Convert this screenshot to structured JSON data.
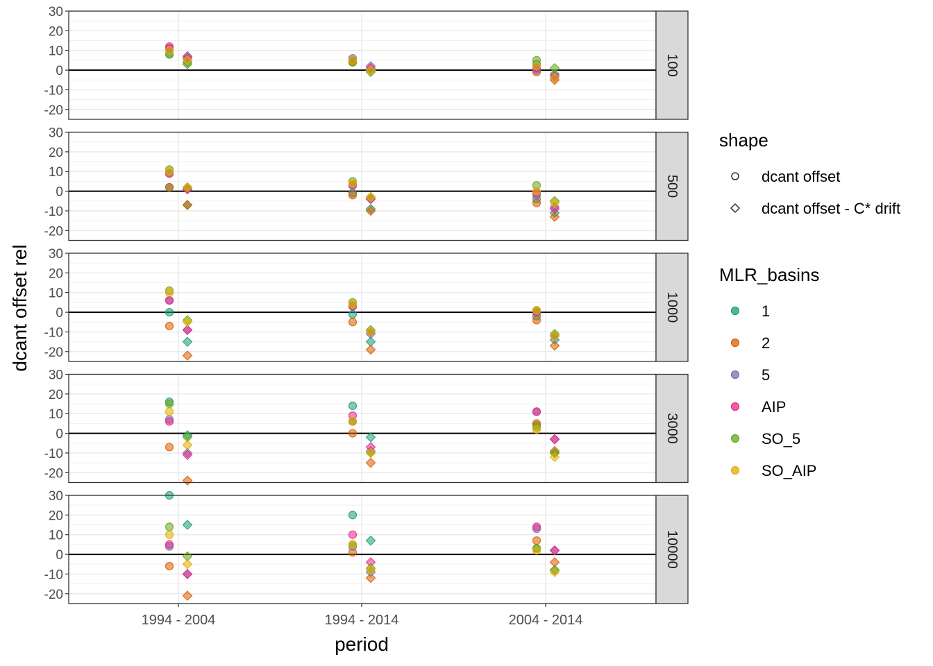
{
  "chart_data": {
    "type": "scatter",
    "facet_label_name": "",
    "facets": [
      "100",
      "500",
      "1000",
      "3000",
      "10000"
    ],
    "xlabel": "period",
    "ylabel": "dcant offset rel",
    "x_categories": [
      "1994 - 2004",
      "1994 - 2014",
      "2004 - 2014"
    ],
    "ylim": [
      -25,
      30
    ],
    "y_ticks": [
      30,
      20,
      10,
      0,
      -10,
      -20
    ],
    "y_tick_labels": [
      "30",
      "20",
      "10",
      "0",
      "-10",
      "-20"
    ],
    "hline": 0,
    "grid": true,
    "legend_position": "right",
    "legend": {
      "shape_title": "shape",
      "shapes": [
        {
          "key": "circle",
          "label": "dcant offset"
        },
        {
          "key": "diamond",
          "label": "dcant offset - C* drift"
        }
      ],
      "color_title": "MLR_basins",
      "colors": [
        {
          "key": "1",
          "label": "1",
          "color": "#1B9E77"
        },
        {
          "key": "2",
          "label": "2",
          "color": "#D95F02"
        },
        {
          "key": "5",
          "label": "5",
          "color": "#7570B3"
        },
        {
          "key": "AIP",
          "label": "AIP",
          "color": "#E7298A"
        },
        {
          "key": "SO_5",
          "label": "SO_5",
          "color": "#66A61E"
        },
        {
          "key": "SO_AIP",
          "label": "SO_AIP",
          "color": "#E6AB02"
        }
      ]
    },
    "series": [
      {
        "facet": "100",
        "shape": "circle",
        "period": "1994 - 2004",
        "values": {
          "1": 8,
          "2": 11,
          "5": 11,
          "AIP": 12,
          "SO_5": 8,
          "SO_AIP": 10
        }
      },
      {
        "facet": "100",
        "shape": "diamond",
        "period": "1994 - 2004",
        "values": {
          "1": 4,
          "2": 7,
          "5": 7,
          "AIP": 6,
          "SO_5": 3,
          "SO_AIP": 5
        }
      },
      {
        "facet": "100",
        "shape": "circle",
        "period": "1994 - 2014",
        "values": {
          "1": 4,
          "2": 4,
          "5": 6,
          "AIP": 5,
          "SO_5": 4,
          "SO_AIP": 5
        }
      },
      {
        "facet": "100",
        "shape": "diamond",
        "period": "1994 - 2014",
        "values": {
          "1": 0,
          "2": 0,
          "5": 2,
          "AIP": 1,
          "SO_5": -1,
          "SO_AIP": 0
        }
      },
      {
        "facet": "100",
        "shape": "circle",
        "period": "2004 - 2014",
        "values": {
          "1": 3,
          "2": -1,
          "5": 0,
          "AIP": 1,
          "SO_5": 5,
          "SO_AIP": 2
        }
      },
      {
        "facet": "100",
        "shape": "diamond",
        "period": "2004 - 2014",
        "values": {
          "1": -2,
          "2": -5,
          "5": -4,
          "AIP": -3,
          "SO_5": 1,
          "SO_AIP": -4
        }
      },
      {
        "facet": "500",
        "shape": "circle",
        "period": "1994 - 2004",
        "values": {
          "1": 2,
          "2": 2,
          "5": 9,
          "AIP": 9,
          "SO_5": 11,
          "SO_AIP": 10
        }
      },
      {
        "facet": "500",
        "shape": "diamond",
        "period": "1994 - 2004",
        "values": {
          "1": -7,
          "2": -7,
          "5": 1,
          "AIP": 1,
          "SO_5": 2,
          "SO_AIP": 2
        }
      },
      {
        "facet": "500",
        "shape": "circle",
        "period": "1994 - 2014",
        "values": {
          "1": -1,
          "2": -2,
          "5": 3,
          "AIP": 3,
          "SO_5": 5,
          "SO_AIP": 4
        }
      },
      {
        "facet": "500",
        "shape": "diamond",
        "period": "1994 - 2014",
        "values": {
          "1": -9,
          "2": -10,
          "5": -4,
          "AIP": -4,
          "SO_5": -3,
          "SO_AIP": -3
        }
      },
      {
        "facet": "500",
        "shape": "circle",
        "period": "2004 - 2014",
        "values": {
          "1": -4,
          "2": -6,
          "5": -2,
          "AIP": -1,
          "SO_5": 3,
          "SO_AIP": 0
        }
      },
      {
        "facet": "500",
        "shape": "diamond",
        "period": "2004 - 2014",
        "values": {
          "1": -11,
          "2": -13,
          "5": -8,
          "AIP": -9,
          "SO_5": -5,
          "SO_AIP": -6
        }
      },
      {
        "facet": "1000",
        "shape": "circle",
        "period": "1994 - 2004",
        "values": {
          "1": 0,
          "2": -7,
          "5": 6,
          "AIP": 6,
          "SO_5": 11,
          "SO_AIP": 10
        }
      },
      {
        "facet": "1000",
        "shape": "diamond",
        "period": "1994 - 2004",
        "values": {
          "1": -15,
          "2": -22,
          "5": -9,
          "AIP": -9,
          "SO_5": -4,
          "SO_AIP": -5
        }
      },
      {
        "facet": "1000",
        "shape": "circle",
        "period": "1994 - 2014",
        "values": {
          "1": -1,
          "2": -5,
          "5": 3,
          "AIP": 3,
          "SO_5": 5,
          "SO_AIP": 4
        }
      },
      {
        "facet": "1000",
        "shape": "diamond",
        "period": "1994 - 2014",
        "values": {
          "1": -15,
          "2": -19,
          "5": -11,
          "AIP": -10,
          "SO_5": -9,
          "SO_AIP": -10
        }
      },
      {
        "facet": "1000",
        "shape": "circle",
        "period": "2004 - 2014",
        "values": {
          "1": -2,
          "2": -4,
          "5": 0,
          "AIP": 0,
          "SO_5": 1,
          "SO_AIP": 1
        }
      },
      {
        "facet": "1000",
        "shape": "diamond",
        "period": "2004 - 2014",
        "values": {
          "1": -14,
          "2": -17,
          "5": -12,
          "AIP": -12,
          "SO_5": -11,
          "SO_AIP": -12
        }
      },
      {
        "facet": "3000",
        "shape": "circle",
        "period": "1994 - 2004",
        "values": {
          "1": 16,
          "2": -7,
          "5": 7,
          "AIP": 6,
          "SO_5": 15,
          "SO_AIP": 11
        }
      },
      {
        "facet": "3000",
        "shape": "diamond",
        "period": "1994 - 2004",
        "values": {
          "1": -1,
          "2": -24,
          "5": -10,
          "AIP": -11,
          "SO_5": -2,
          "SO_AIP": -6
        }
      },
      {
        "facet": "3000",
        "shape": "circle",
        "period": "1994 - 2014",
        "values": {
          "1": 14,
          "2": 0,
          "5": 6,
          "AIP": 9,
          "SO_5": 6,
          "SO_AIP": 6
        }
      },
      {
        "facet": "3000",
        "shape": "diamond",
        "period": "1994 - 2014",
        "values": {
          "1": -2,
          "2": -15,
          "5": -9,
          "AIP": -7,
          "SO_5": -10,
          "SO_AIP": -10
        }
      },
      {
        "facet": "3000",
        "shape": "circle",
        "period": "2004 - 2014",
        "values": {
          "1": 4,
          "2": 5,
          "5": 11,
          "AIP": 11,
          "SO_5": 3,
          "SO_AIP": 2
        }
      },
      {
        "facet": "3000",
        "shape": "diamond",
        "period": "2004 - 2014",
        "values": {
          "1": -10,
          "2": -9,
          "5": -3,
          "AIP": -3,
          "SO_5": -10,
          "SO_AIP": -12
        }
      },
      {
        "facet": "10000",
        "shape": "circle",
        "period": "1994 - 2004",
        "values": {
          "1": 30,
          "2": -6,
          "5": 4,
          "AIP": 5,
          "SO_5": 14,
          "SO_AIP": 10
        }
      },
      {
        "facet": "10000",
        "shape": "diamond",
        "period": "1994 - 2004",
        "values": {
          "1": 15,
          "2": -21,
          "5": -10,
          "AIP": -10,
          "SO_5": -1,
          "SO_AIP": -5
        }
      },
      {
        "facet": "10000",
        "shape": "circle",
        "period": "1994 - 2014",
        "values": {
          "1": 20,
          "2": 1,
          "5": 4,
          "AIP": 10,
          "SO_5": 5,
          "SO_AIP": 5
        }
      },
      {
        "facet": "10000",
        "shape": "diamond",
        "period": "1994 - 2014",
        "values": {
          "1": 7,
          "2": -12,
          "5": -9,
          "AIP": -4,
          "SO_5": -7,
          "SO_AIP": -8
        }
      },
      {
        "facet": "10000",
        "shape": "circle",
        "period": "2004 - 2014",
        "values": {
          "1": 3,
          "2": 7,
          "5": 13,
          "AIP": 14,
          "SO_5": 3,
          "SO_AIP": 2
        }
      },
      {
        "facet": "10000",
        "shape": "diamond",
        "period": "2004 - 2014",
        "values": {
          "1": -8,
          "2": -4,
          "5": 2,
          "AIP": 2,
          "SO_5": -8,
          "SO_AIP": -9
        }
      }
    ]
  }
}
